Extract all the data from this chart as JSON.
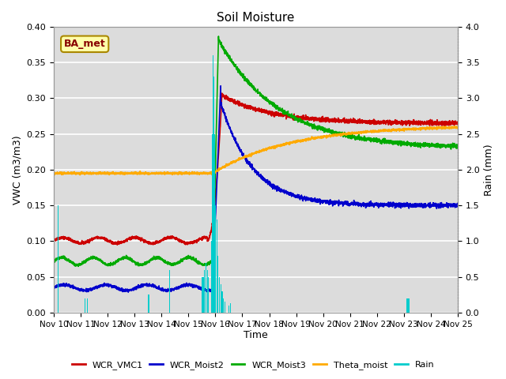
{
  "title": "Soil Moisture",
  "ylabel_left": "VWC (m3/m3)",
  "ylabel_right": "Rain (mm)",
  "xlabel": "Time",
  "ylim_left": [
    0.0,
    0.4
  ],
  "ylim_right": [
    0.0,
    4.0
  ],
  "background_color": "#dcdcdc",
  "annotation_text": "BA_met",
  "annotation_bg": "#ffffaa",
  "annotation_border": "#aa8800",
  "annotation_text_color": "#880000",
  "grid_color": "white",
  "series_colors": {
    "WCR_VMC1": "#cc0000",
    "WCR_Moist2": "#0000cc",
    "WCR_Moist3": "#00aa00",
    "Theta_moist": "#ffaa00",
    "Rain": "#00cccc"
  },
  "xtick_labels": [
    "Nov 10",
    "Nov 11",
    "Nov 12",
    "Nov 13",
    "Nov 14",
    "Nov 15",
    "Nov 16",
    "Nov 17",
    "Nov 18",
    "Nov 19",
    "Nov 20",
    "Nov 21",
    "Nov 22",
    "Nov 23",
    "Nov 24",
    "Nov 25"
  ],
  "ytick_left": [
    0.0,
    0.05,
    0.1,
    0.15,
    0.2,
    0.25,
    0.3,
    0.35,
    0.4
  ],
  "ytick_right": [
    0.0,
    0.5,
    1.0,
    1.5,
    2.0,
    2.5,
    3.0,
    3.5,
    4.0
  ]
}
